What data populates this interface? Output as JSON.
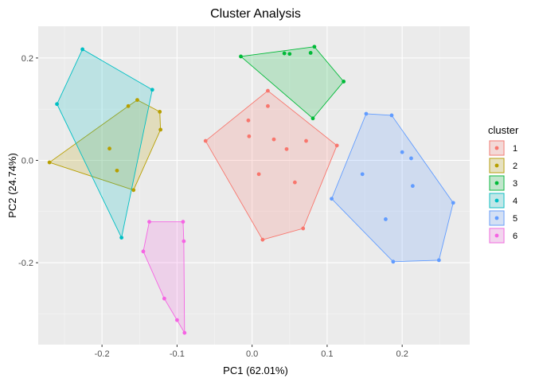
{
  "chart_data": {
    "type": "scatter",
    "title": "Cluster Analysis",
    "xlabel": "PC1 (62.01%)",
    "ylabel": "PC2 (24.74%)",
    "xlim": [
      -0.285,
      0.29
    ],
    "ylim": [
      -0.36,
      0.262
    ],
    "x_ticks": [
      -0.2,
      -0.1,
      0.0,
      0.1,
      0.2
    ],
    "x_tick_labels": [
      "-0.2",
      "-0.1",
      "0.0",
      "0.1",
      "0.2"
    ],
    "y_ticks": [
      -0.2,
      0.0,
      0.2
    ],
    "y_tick_labels": [
      "-0.2",
      "0.0",
      "0.2"
    ],
    "grid": true,
    "legend_position": "right",
    "legend_title": "cluster",
    "hulls": true,
    "series": [
      {
        "name": "1",
        "color": "#F8766D",
        "points": [
          [
            -0.062,
            0.038
          ],
          [
            -0.005,
            0.078
          ],
          [
            -0.004,
            0.047
          ],
          [
            0.009,
            -0.027
          ],
          [
            0.014,
            -0.155
          ],
          [
            0.021,
            0.106
          ],
          [
            0.021,
            0.136
          ],
          [
            0.029,
            0.041
          ],
          [
            0.046,
            0.022
          ],
          [
            0.057,
            -0.043
          ],
          [
            0.068,
            -0.133
          ],
          [
            0.072,
            0.038
          ],
          [
            0.113,
            0.029
          ]
        ]
      },
      {
        "name": "2",
        "color": "#B79F00",
        "points": [
          [
            -0.27,
            -0.004
          ],
          [
            -0.19,
            0.023
          ],
          [
            -0.18,
            -0.02
          ],
          [
            -0.165,
            0.106
          ],
          [
            -0.158,
            -0.058
          ],
          [
            -0.153,
            0.118
          ],
          [
            -0.123,
            0.095
          ],
          [
            -0.122,
            0.06
          ]
        ]
      },
      {
        "name": "3",
        "color": "#00BA38",
        "points": [
          [
            -0.015,
            0.203
          ],
          [
            0.043,
            0.209
          ],
          [
            0.05,
            0.208
          ],
          [
            0.078,
            0.21
          ],
          [
            0.081,
            0.082
          ],
          [
            0.083,
            0.222
          ],
          [
            0.122,
            0.154
          ]
        ]
      },
      {
        "name": "4",
        "color": "#00BFC4",
        "points": [
          [
            -0.26,
            0.11
          ],
          [
            -0.226,
            0.217
          ],
          [
            -0.174,
            -0.151
          ],
          [
            -0.133,
            0.138
          ]
        ]
      },
      {
        "name": "5",
        "color": "#619CFF",
        "points": [
          [
            0.106,
            -0.075
          ],
          [
            0.147,
            -0.027
          ],
          [
            0.152,
            0.091
          ],
          [
            0.178,
            -0.115
          ],
          [
            0.186,
            0.088
          ],
          [
            0.188,
            -0.198
          ],
          [
            0.2,
            0.016
          ],
          [
            0.212,
            0.004
          ],
          [
            0.214,
            -0.05
          ],
          [
            0.249,
            -0.195
          ],
          [
            0.268,
            -0.083
          ]
        ]
      },
      {
        "name": "6",
        "color": "#F564E3",
        "points": [
          [
            -0.145,
            -0.178
          ],
          [
            -0.137,
            -0.12
          ],
          [
            -0.117,
            -0.27
          ],
          [
            -0.1,
            -0.312
          ],
          [
            -0.092,
            -0.12
          ],
          [
            -0.091,
            -0.158
          ],
          [
            -0.09,
            -0.337
          ]
        ]
      }
    ]
  }
}
